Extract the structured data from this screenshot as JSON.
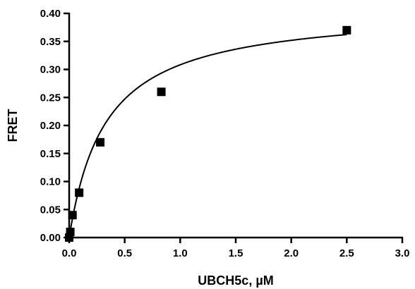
{
  "chart_data": {
    "type": "scatter",
    "title": "",
    "xlabel": "UBCH5c, µM",
    "ylabel": "FRET",
    "xlim": [
      0,
      3.0
    ],
    "ylim": [
      0,
      0.4
    ],
    "x_ticks": [
      "0.0",
      "0.5",
      "1.0",
      "1.5",
      "2.0",
      "2.5",
      "3.0"
    ],
    "y_ticks": [
      "0.00",
      "0.05",
      "0.10",
      "0.15",
      "0.20",
      "0.25",
      "0.30",
      "0.35",
      "0.40"
    ],
    "grid": false,
    "legend": "none",
    "marker": "square",
    "colors": {
      "marker": "#000000",
      "line": "#000000",
      "axis": "#000000"
    },
    "series": [
      {
        "points": [
          {
            "x": 0.0,
            "y": 0.0
          },
          {
            "x": 0.01,
            "y": 0.01
          },
          {
            "x": 0.03,
            "y": 0.04
          },
          {
            "x": 0.09,
            "y": 0.08
          },
          {
            "x": 0.28,
            "y": 0.17
          },
          {
            "x": 0.83,
            "y": 0.26
          },
          {
            "x": 2.5,
            "y": 0.37
          }
        ],
        "fit": {
          "model": "hyperbola",
          "bmax": 0.41,
          "kd": 0.33,
          "x_range": [
            0,
            2.5
          ]
        }
      }
    ]
  }
}
